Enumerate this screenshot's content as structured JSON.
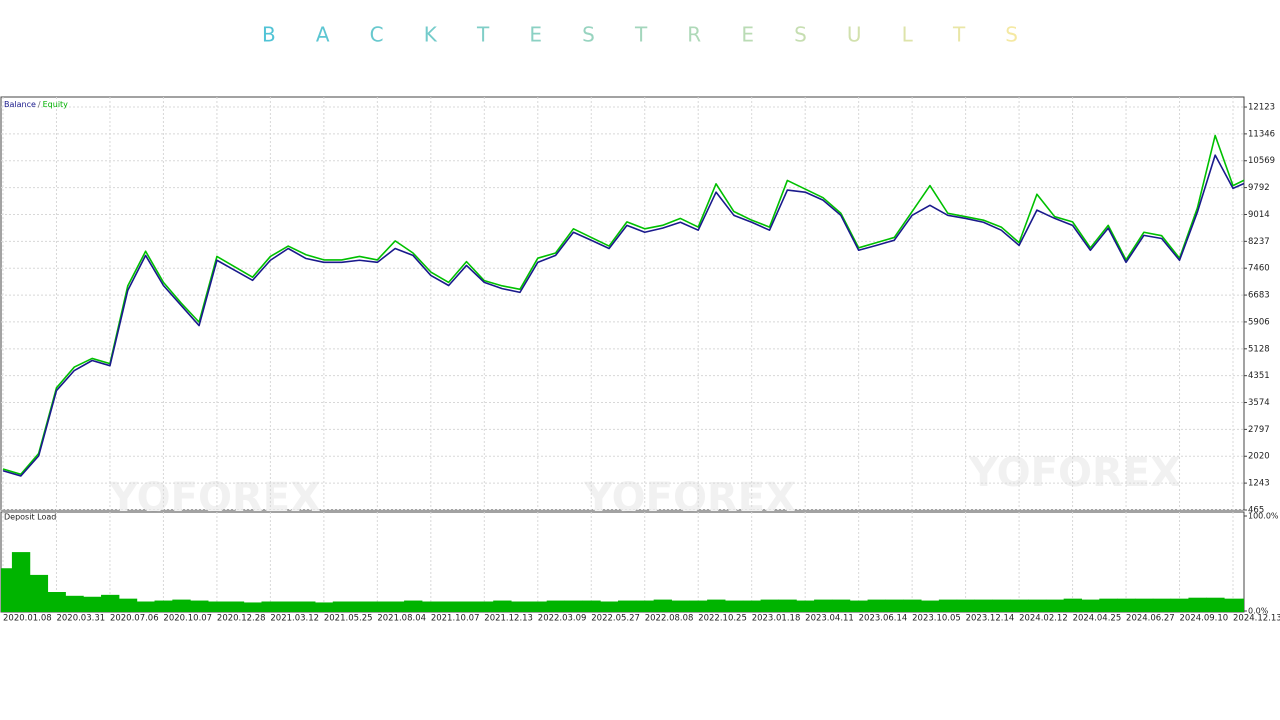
{
  "page_title": "B A C K T E S T R E S U L T S",
  "watermark": "YOFOREX",
  "chart_data": [
    {
      "type": "line",
      "legend_separator": "/",
      "grid": true,
      "categories": [
        "2020.01.08",
        null,
        null,
        "2020.03.31",
        null,
        null,
        "2020.07.06",
        null,
        null,
        "2020.10.07",
        null,
        null,
        "2020.12.28",
        null,
        null,
        "2021.03.12",
        null,
        null,
        "2021.05.25",
        null,
        null,
        "2021.08.04",
        null,
        null,
        "2021.10.07",
        null,
        null,
        "2021.12.13",
        null,
        null,
        "2022.03.09",
        null,
        null,
        "2022.05.27",
        null,
        null,
        "2022.08.08",
        null,
        null,
        "2022.10.25",
        null,
        null,
        "2023.01.18",
        null,
        null,
        "2023.04.11",
        null,
        null,
        "2023.06.14",
        null,
        null,
        "2023.10.05",
        null,
        null,
        "2023.12.14",
        null,
        null,
        "2024.02.12",
        null,
        null,
        "2024.04.25",
        null,
        null,
        "2024.06.27",
        null,
        null,
        "2024.09.10",
        null,
        null,
        "2024.12.13",
        null
      ],
      "series": [
        {
          "name": "Equity",
          "color": "#00c000",
          "values": [
            1650,
            1500,
            2100,
            4000,
            4600,
            4850,
            4700,
            6950,
            7950,
            7050,
            6450,
            5900,
            7800,
            7500,
            7200,
            7800,
            8100,
            7850,
            7700,
            7700,
            7800,
            7700,
            8250,
            7900,
            7350,
            7050,
            7650,
            7100,
            6950,
            6850,
            7750,
            7900,
            8600,
            8350,
            8100,
            8800,
            8600,
            8700,
            8900,
            8650,
            9900,
            9100,
            8850,
            8650,
            10000,
            9750,
            9500,
            9050,
            8050,
            8200,
            8350,
            9100,
            9850,
            9050,
            8950,
            8850,
            8650,
            8200,
            9600,
            8950,
            8800,
            8050,
            8700,
            7700,
            8500,
            8400,
            7750,
            9200,
            11300,
            9850,
            10100
          ]
        },
        {
          "name": "Balance",
          "color": "#1a1a8c",
          "values": [
            1600,
            1450,
            2030,
            3920,
            4500,
            4790,
            4640,
            6820,
            7830,
            6960,
            6380,
            5800,
            7690,
            7400,
            7110,
            7690,
            8030,
            7740,
            7630,
            7630,
            7690,
            7630,
            8030,
            7830,
            7250,
            6960,
            7540,
            7050,
            6870,
            6760,
            7630,
            7830,
            8500,
            8270,
            8030,
            8700,
            8500,
            8620,
            8790,
            8560,
            9660,
            8990,
            8790,
            8560,
            9720,
            9660,
            9430,
            8990,
            7980,
            8120,
            8270,
            8990,
            9280,
            8990,
            8900,
            8790,
            8560,
            8120,
            9140,
            8900,
            8700,
            7980,
            8620,
            7630,
            8410,
            8320,
            7690,
            9080,
            10730,
            9770,
            10000
          ]
        }
      ],
      "ylim": [
        465,
        12413
      ],
      "yticks": [
        465,
        1243,
        2020,
        2797,
        3574,
        4351,
        5128,
        5906,
        6683,
        7460,
        8237,
        9014,
        9792,
        10569,
        11346,
        12123
      ]
    },
    {
      "type": "bar",
      "title": "Deposit Load",
      "color": "#00b400",
      "values": [
        45,
        62,
        38,
        20,
        16,
        15,
        17,
        13,
        10,
        11,
        12,
        11,
        10,
        10,
        9,
        10,
        10,
        10,
        9,
        10,
        10,
        10,
        10,
        11,
        10,
        10,
        10,
        10,
        11,
        10,
        10,
        11,
        11,
        11,
        10,
        11,
        11,
        12,
        11,
        11,
        12,
        11,
        11,
        12,
        12,
        11,
        12,
        12,
        11,
        12,
        12,
        12,
        11,
        12,
        12,
        12,
        12,
        12,
        12,
        12,
        13,
        12,
        13,
        13,
        13,
        13,
        13,
        14,
        14,
        13,
        13
      ],
      "ylim": [
        0,
        100
      ],
      "yticks": [
        {
          "value": 100,
          "label": "100.0%"
        },
        {
          "value": 0,
          "label": "0.0%"
        }
      ]
    }
  ]
}
